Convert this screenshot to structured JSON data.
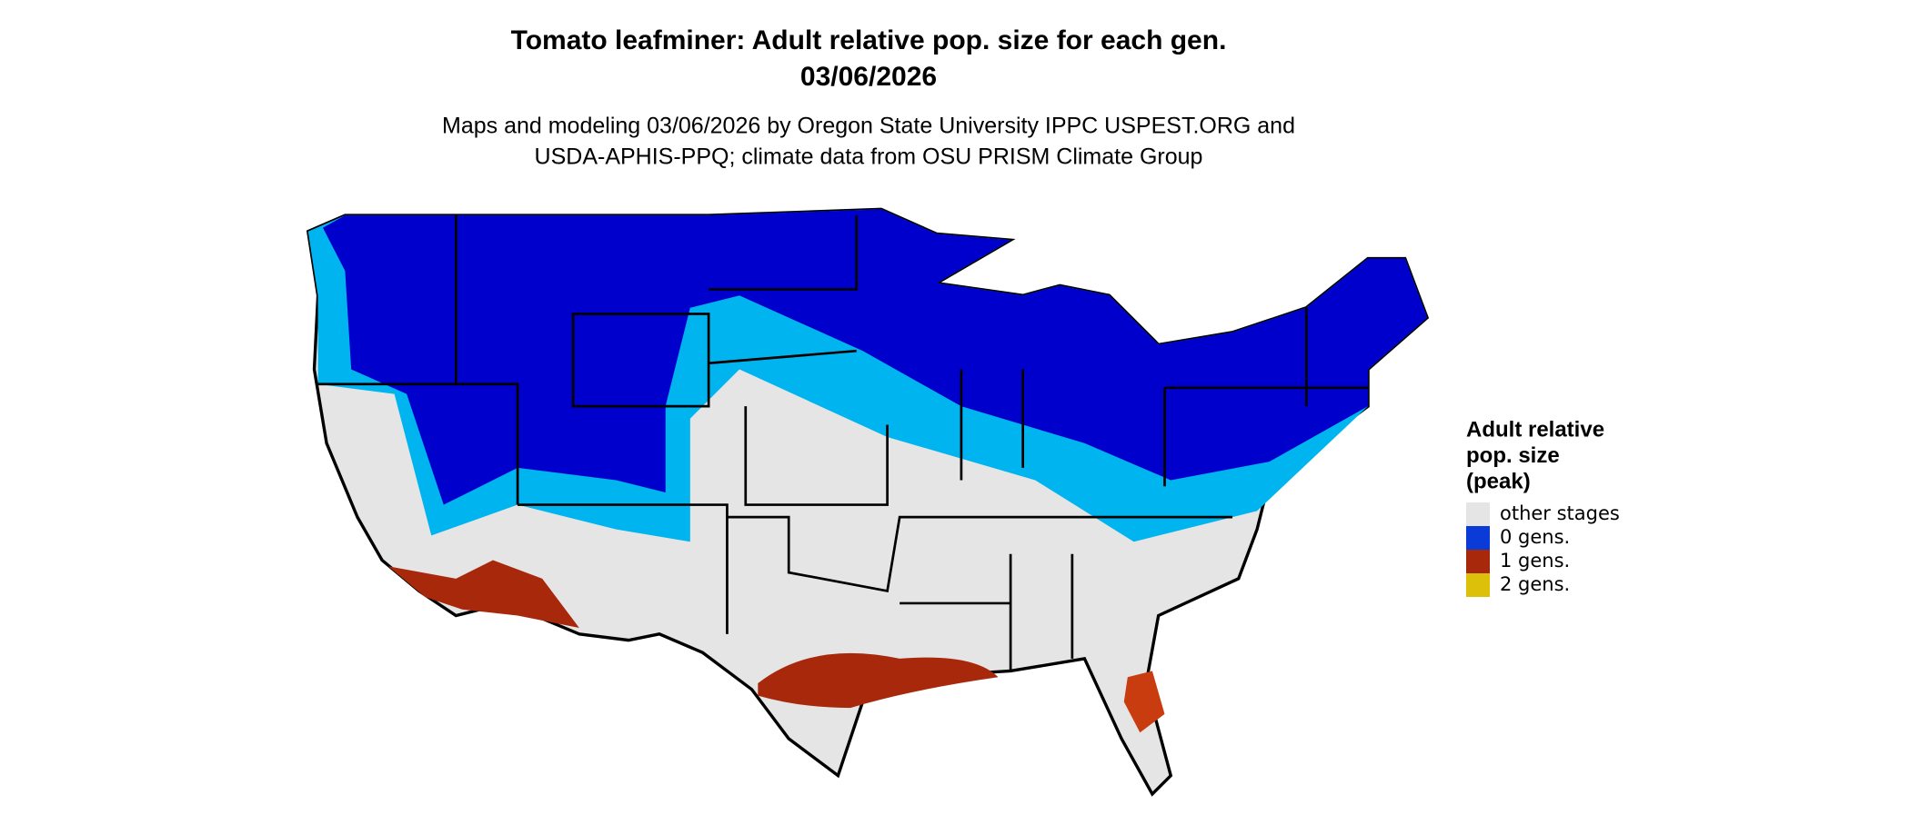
{
  "title": [
    "Tomato leafminer: Adult relative pop. size for each gen.",
    "03/06/2026"
  ],
  "subtitle": [
    "Maps and modeling 03/06/2026 by Oregon State University IPPC USPEST.ORG and",
    "USDA-APHIS-PPQ; climate data from OSU PRISM Climate Group"
  ],
  "legend": {
    "title": [
      "Adult relative",
      "pop. size",
      "(peak)"
    ],
    "items": [
      {
        "label": "other stages",
        "color": "#e5e5e5"
      },
      {
        "label": "0 gens.",
        "color": "#0a3bd9"
      },
      {
        "label": "1 gens.",
        "color": "#a8280c"
      },
      {
        "label": "2 gens.",
        "color": "#dcc00a"
      }
    ]
  }
}
